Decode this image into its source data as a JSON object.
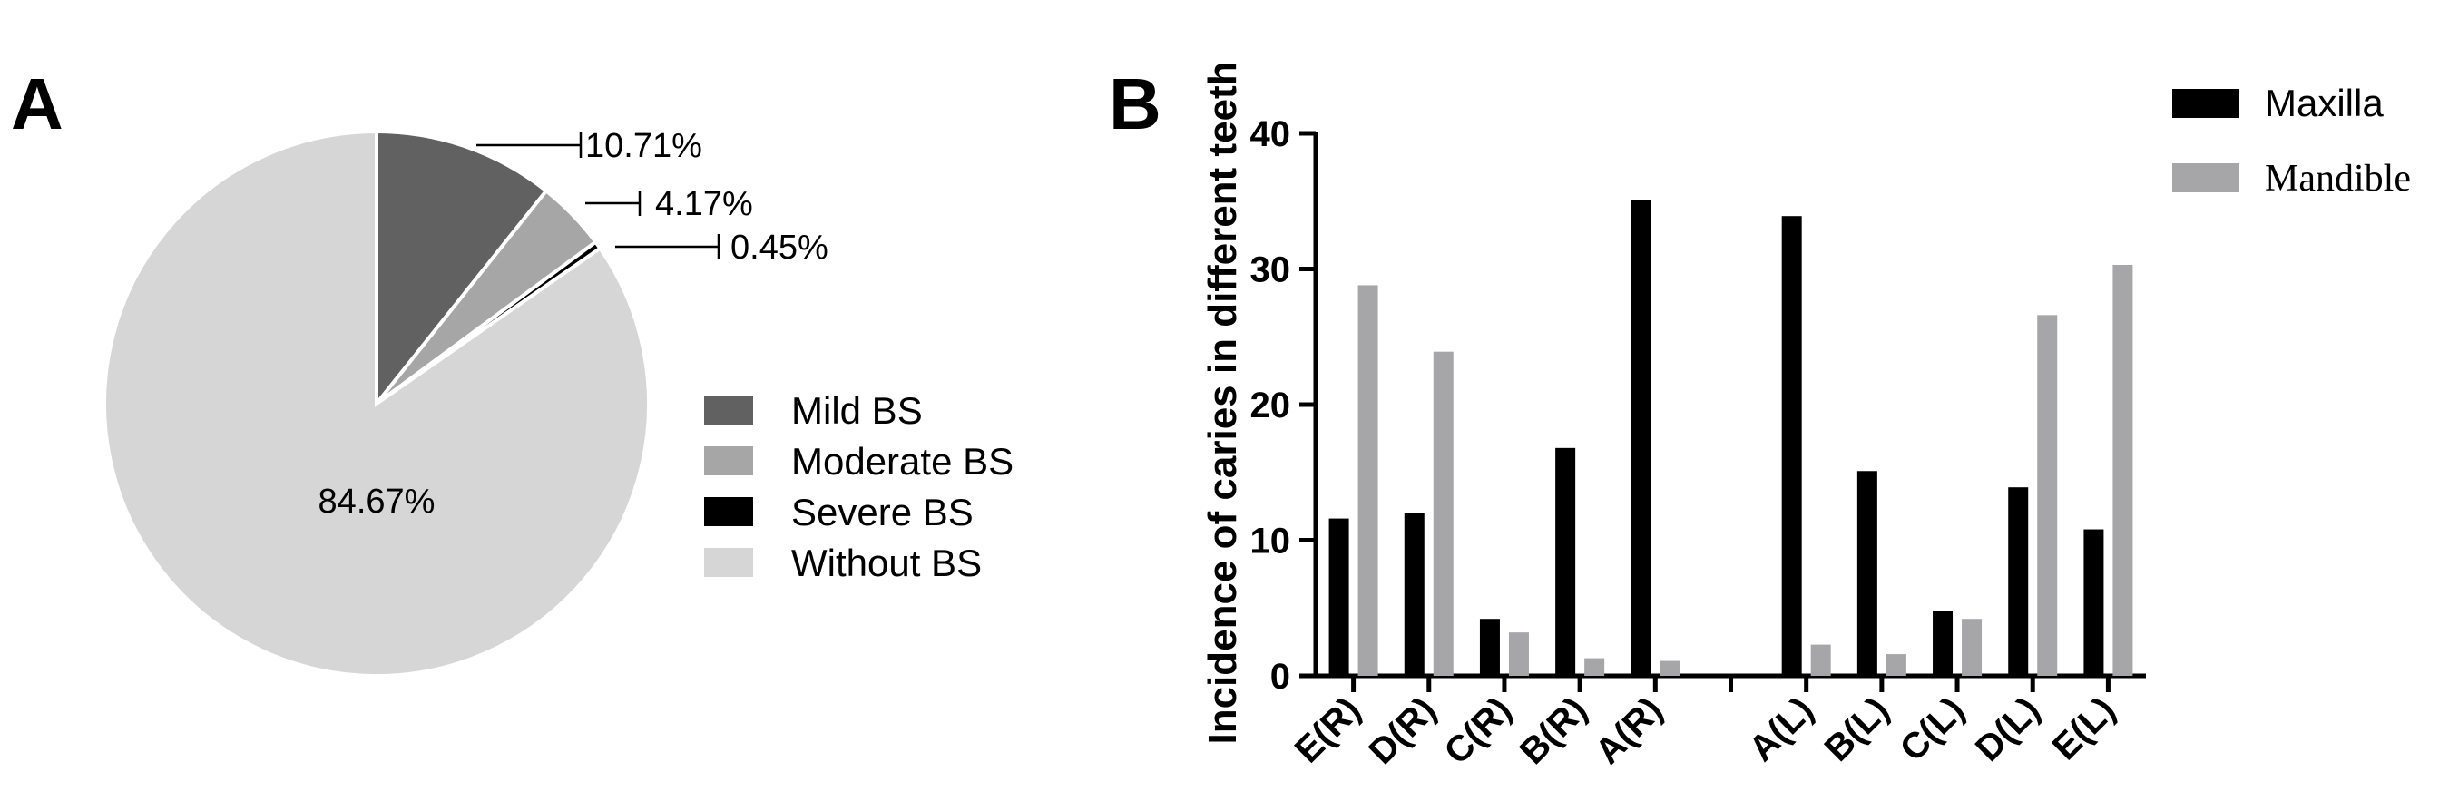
{
  "panels": {
    "a_label": "A",
    "b_label": "B"
  },
  "colors": {
    "mild": "#616161",
    "moderate": "#a6a6a6",
    "severe": "#000000",
    "without": "#d6d6d6",
    "maxilla": "#000000",
    "mandible": "#a6a6a8"
  },
  "chart_data": [
    {
      "type": "pie",
      "panel": "A",
      "slices": [
        {
          "label": "Mild BS",
          "value": 10.71,
          "display": "10.71%",
          "color": "#616161"
        },
        {
          "label": "Moderate BS",
          "value": 4.17,
          "display": "4.17%",
          "color": "#a6a6a6"
        },
        {
          "label": "Severe BS",
          "value": 0.45,
          "display": "0.45%",
          "color": "#000000"
        },
        {
          "label": "Without BS",
          "value": 84.67,
          "display": "84.67%",
          "color": "#d6d6d6"
        }
      ],
      "legend": [
        "Mild BS",
        "Moderate BS",
        "Severe BS",
        "Without BS"
      ],
      "legend_position": "right"
    },
    {
      "type": "bar",
      "panel": "B",
      "categories": [
        "E(R)",
        "D(R)",
        "C(R)",
        "B(R)",
        "A(R)",
        "",
        "A(L)",
        "B(L)",
        "C(L)",
        "D(L)",
        "E(L)"
      ],
      "series": [
        {
          "name": "Maxilla",
          "color": "#000000",
          "values": [
            11.6,
            12.0,
            4.2,
            16.8,
            35.1,
            null,
            33.9,
            15.1,
            4.8,
            13.9,
            10.8
          ]
        },
        {
          "name": "Mandible",
          "color": "#a6a6a8",
          "values": [
            28.8,
            23.9,
            3.2,
            1.3,
            1.1,
            null,
            2.3,
            1.6,
            4.2,
            26.6,
            30.3
          ]
        }
      ],
      "ylabel": "Incidence of caries in different teeth",
      "yticks": [
        0,
        10,
        20,
        30,
        40
      ],
      "ylim": [
        0,
        40
      ],
      "legend_position": "top-right",
      "grid": false
    }
  ]
}
